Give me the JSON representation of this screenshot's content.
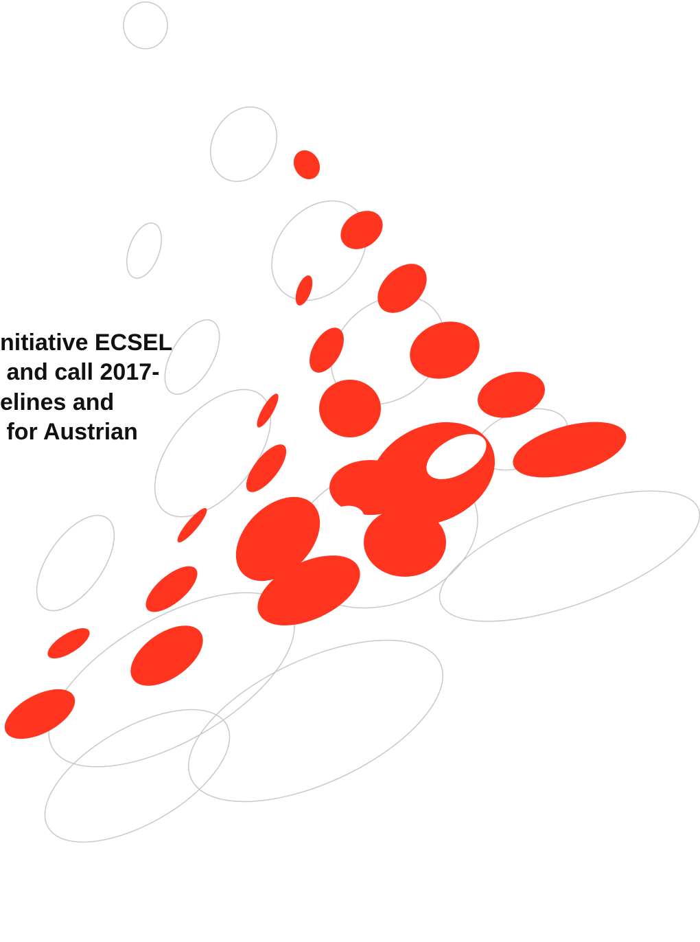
{
  "title_lines": [
    "nitiative ECSEL",
    " and call 2017-",
    "elines and",
    " for Austrian"
  ]
}
